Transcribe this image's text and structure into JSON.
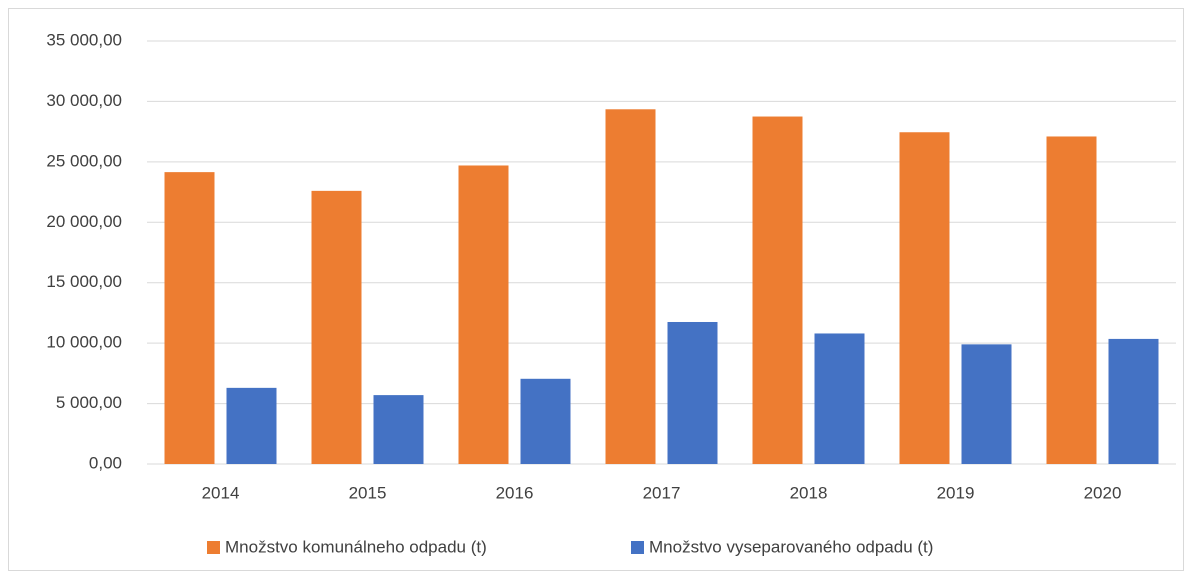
{
  "chart_data": {
    "type": "bar",
    "categories": [
      "2014",
      "2015",
      "2016",
      "2017",
      "2018",
      "2019",
      "2020"
    ],
    "series": [
      {
        "name": "Množstvo komunálneho odpadu (t)",
        "color": "#ed7d31",
        "values": [
          24150,
          22600,
          24700,
          29350,
          28750,
          27450,
          27100
        ]
      },
      {
        "name": "Množstvo vyseparovaného odpadu (t)",
        "color": "#4472c4",
        "values": [
          6300,
          5700,
          7050,
          11750,
          10800,
          9900,
          10350
        ]
      }
    ],
    "ylim": [
      0,
      35000
    ],
    "yticks": [
      {
        "value": 0,
        "label": "0,00"
      },
      {
        "value": 5000,
        "label": "5 000,00"
      },
      {
        "value": 10000,
        "label": "10 000,00"
      },
      {
        "value": 15000,
        "label": "15 000,00"
      },
      {
        "value": 20000,
        "label": "20 000,00"
      },
      {
        "value": 25000,
        "label": "25 000,00"
      },
      {
        "value": 30000,
        "label": "30 000,00"
      },
      {
        "value": 35000,
        "label": "35 000,00"
      }
    ],
    "grid": true,
    "legend": "bottom"
  }
}
